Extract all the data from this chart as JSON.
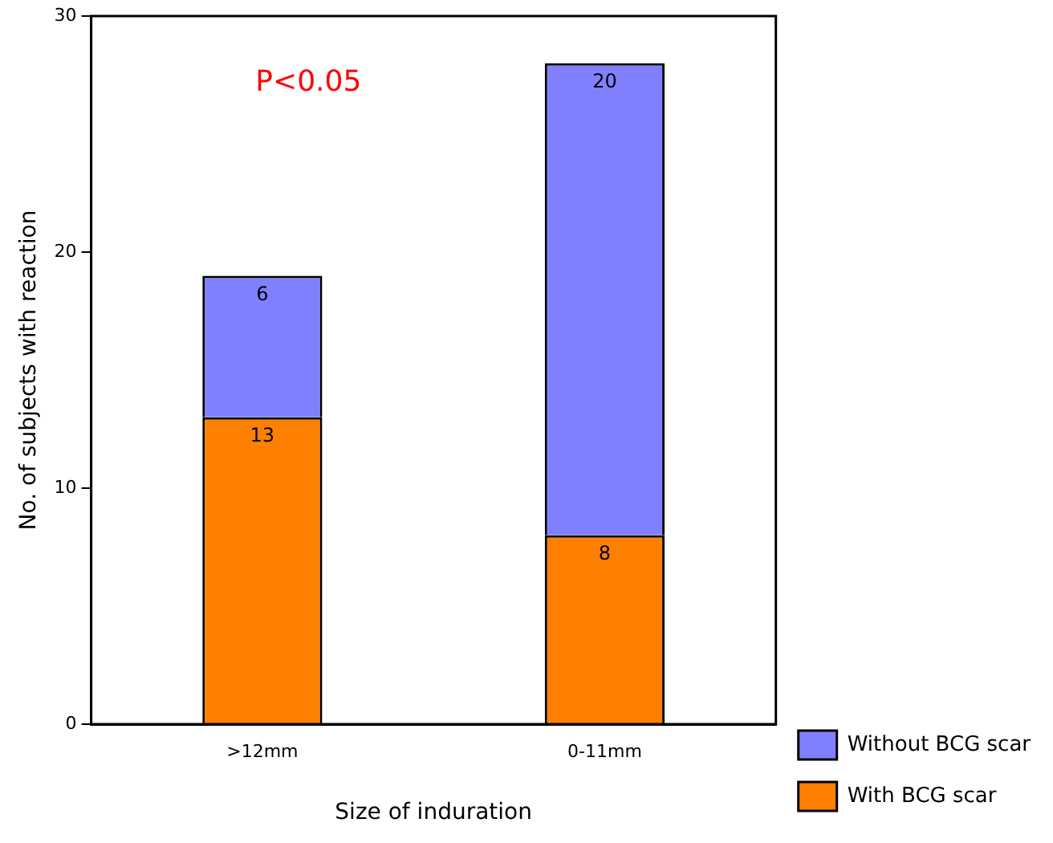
{
  "chart_data": {
    "type": "bar",
    "stacked": true,
    "xlabel": "Size of induration",
    "ylabel": "No. of subjects with reaction",
    "categories": [
      ">12mm",
      "0-11mm"
    ],
    "series": [
      {
        "name": "With BCG scar",
        "color": "#ff8000",
        "values": [
          13,
          8
        ]
      },
      {
        "name": "Without BCG scar",
        "color": "#8080ff",
        "values": [
          6,
          20
        ]
      }
    ],
    "ylim": [
      0,
      30
    ],
    "yticks": [
      0,
      10,
      20,
      30
    ],
    "grid": false,
    "legend": "bottom right",
    "data_labels": true,
    "annotations": [
      "P<0.05"
    ]
  }
}
